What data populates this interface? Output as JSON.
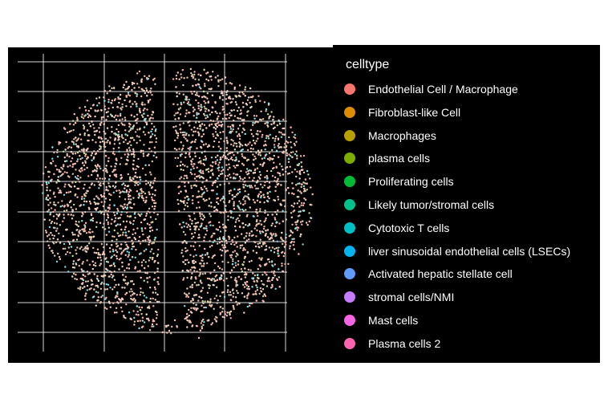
{
  "chart_data": {
    "type": "scatter",
    "title": "",
    "xlabel": "",
    "ylabel": "",
    "grid": true,
    "legend_position": "right",
    "background": "#000000",
    "grid_color": "#ffffff",
    "legend_title": "celltype",
    "series": [
      {
        "name": "Endothelial Cell / Macrophage",
        "color": "#F8766D"
      },
      {
        "name": "Fibroblast-like Cell",
        "color": "#DE8C00"
      },
      {
        "name": "Macrophages",
        "color": "#B79F00"
      },
      {
        "name": "plasma cells",
        "color": "#7CAE00"
      },
      {
        "name": "Proliferating cells",
        "color": "#00BA38"
      },
      {
        "name": "Likely tumor/stromal cells",
        "color": "#00C08B"
      },
      {
        "name": "Cytotoxic T cells",
        "color": "#00BFC4"
      },
      {
        "name": "liver sinusoidal endothelial cells (LSECs)",
        "color": "#00B4F0"
      },
      {
        "name": "Activated hepatic stellate cell",
        "color": "#619CFF"
      },
      {
        "name": "stromal cells/NMI",
        "color": "#C77CFF"
      },
      {
        "name": "Mast cells",
        "color": "#F564E3"
      },
      {
        "name": "Plasma cells 2",
        "color": "#FF64B0"
      }
    ],
    "point_color_mix": [
      "#f4c2b8",
      "#f0b9a8",
      "#e8d0c0",
      "#f5d5c8",
      "#d9c9a0",
      "#f2b0a8",
      "#e8c8b8",
      "#7fe0e8",
      "#f8c8d8",
      "#c8e0a0"
    ]
  }
}
